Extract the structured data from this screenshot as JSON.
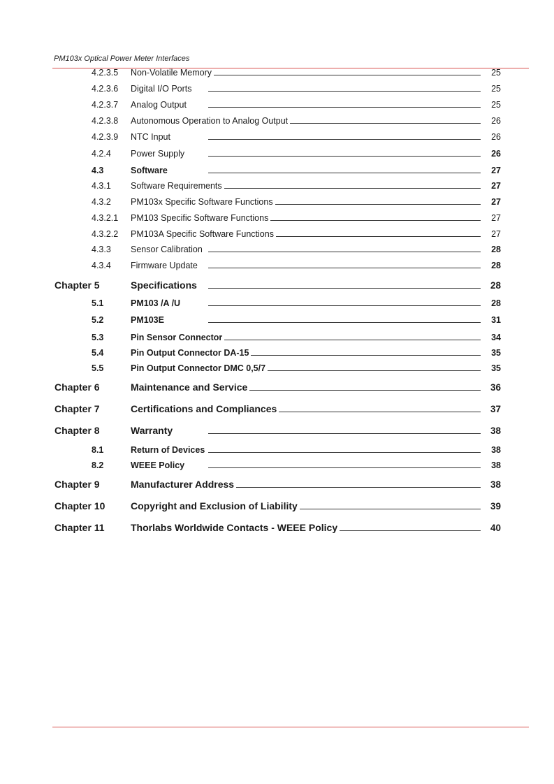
{
  "header": {
    "title": "PM103x Optical Power Meter Interfaces"
  },
  "toc": [
    {
      "num": "4.2.3.5",
      "title": "Non-Volatile Memory",
      "page": "25"
    },
    {
      "num": "4.2.3.6",
      "title": "Digital I/O Ports",
      "page": "25"
    },
    {
      "num": "4.2.3.7",
      "title": "Analog Output",
      "page": "25"
    },
    {
      "num": "4.2.3.8",
      "title": "Autonomous Operation to Analog Output",
      "page": "26"
    },
    {
      "num": "4.2.3.9",
      "title": "NTC Input",
      "page": "26"
    },
    {
      "num": "4.2.4",
      "title": "Power Supply",
      "page": "26"
    },
    {
      "num": "4.3",
      "title": "Software",
      "page": "27"
    },
    {
      "num": "4.3.1",
      "title": "Software Requirements",
      "page": "27"
    },
    {
      "num": "4.3.2",
      "title": "PM103x Specific Software Functions",
      "page": "27"
    },
    {
      "num": "4.3.2.1",
      "title": "PM103 Specific Software Functions",
      "page": "27"
    },
    {
      "num": "4.3.2.2",
      "title": "PM103A Specific Software Functions",
      "page": "27"
    },
    {
      "num": "4.3.3",
      "title": "Sensor Calibration",
      "page": "28"
    },
    {
      "num": "4.3.4",
      "title": "Firmware Update",
      "page": "28"
    },
    {
      "num": "Chapter 5",
      "title": "Specifications",
      "page": "28"
    },
    {
      "num": "5.1",
      "title": "PM103 /A /U",
      "page": "28"
    },
    {
      "num": "5.2",
      "title": "PM103E",
      "page": "31"
    },
    {
      "num": "5.3",
      "title": "Pin Sensor Connector",
      "page": "34"
    },
    {
      "num": "5.4",
      "title": "Pin Output Connector DA-15",
      "page": "35"
    },
    {
      "num": "5.5",
      "title": "Pin Output Connector DMC 0,5/7",
      "page": "35"
    },
    {
      "num": "Chapter 6",
      "title": "Maintenance and Service",
      "page": "36"
    },
    {
      "num": "Chapter 7",
      "title": "Certifications and Compliances",
      "page": "37"
    },
    {
      "num": "Chapter 8",
      "title": "Warranty",
      "page": "38"
    },
    {
      "num": "8.1",
      "title": "Return of Devices",
      "page": "38"
    },
    {
      "num": "8.2",
      "title": "WEEE Policy",
      "page": "38"
    },
    {
      "num": "Chapter 9",
      "title": "Manufacturer Address",
      "page": "38"
    },
    {
      "num": "Chapter 10",
      "title": "Copyright and Exclusion of Liability",
      "page": "39"
    },
    {
      "num": "Chapter 11",
      "title": "Thorlabs Worldwide Contacts - WEEE Policy",
      "page": "40"
    }
  ]
}
